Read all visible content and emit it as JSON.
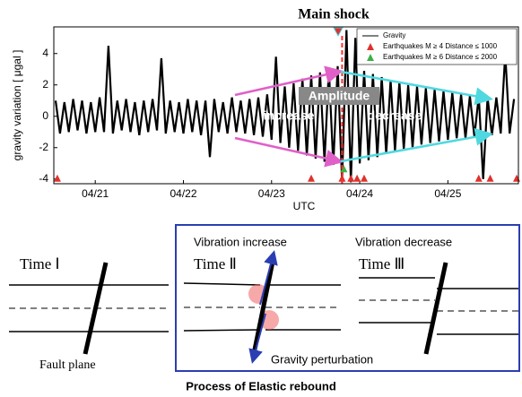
{
  "chart_data": {
    "type": "line",
    "title": "Main shock",
    "xlabel": "UTC",
    "ylabel": "gravity variation [ μgal ]",
    "annotations": {
      "amplitude": "Amplitude",
      "increase": "increase",
      "decrease": "decrease"
    },
    "xlim": [
      20.53,
      25.8
    ],
    "ylim": [
      -4.3,
      5.7
    ],
    "xticks": [
      {
        "value": 21,
        "label": "04/21"
      },
      {
        "value": 22,
        "label": "04/22"
      },
      {
        "value": 23,
        "label": "04/23"
      },
      {
        "value": 24,
        "label": "04/24"
      },
      {
        "value": 25,
        "label": "04/25"
      }
    ],
    "yticks": [
      -4,
      -2,
      0,
      2,
      4
    ],
    "main_shock_x": 23.8,
    "series": [
      {
        "name": "Gravity",
        "color": "#000000",
        "kind": "line",
        "x": [
          20.55,
          20.6,
          20.65,
          20.7,
          20.75,
          20.8,
          20.85,
          20.9,
          20.95,
          21.0,
          21.05,
          21.1,
          21.15,
          21.2,
          21.25,
          21.3,
          21.35,
          21.4,
          21.45,
          21.5,
          21.55,
          21.6,
          21.65,
          21.7,
          21.75,
          21.8,
          21.85,
          21.9,
          21.95,
          22.0,
          22.05,
          22.1,
          22.15,
          22.2,
          22.25,
          22.3,
          22.35,
          22.4,
          22.45,
          22.5,
          22.55,
          22.6,
          22.65,
          22.7,
          22.75,
          22.8,
          22.85,
          22.9,
          22.95,
          23.0,
          23.05,
          23.1,
          23.15,
          23.2,
          23.25,
          23.3,
          23.35,
          23.4,
          23.45,
          23.5,
          23.55,
          23.6,
          23.65,
          23.7,
          23.75,
          23.8,
          23.85,
          23.9,
          23.95,
          24.0,
          24.05,
          24.1,
          24.15,
          24.2,
          24.25,
          24.3,
          24.35,
          24.4,
          24.45,
          24.5,
          24.55,
          24.6,
          24.65,
          24.7,
          24.75,
          24.8,
          24.85,
          24.9,
          24.95,
          25.0,
          25.05,
          25.1,
          25.15,
          25.2,
          25.25,
          25.3,
          25.35,
          25.4,
          25.45,
          25.5,
          25.55,
          25.6,
          25.65,
          25.7,
          25.75
        ],
        "values": [
          1.0,
          -1.1,
          0.9,
          -1.0,
          1.1,
          -0.9,
          1.0,
          -1.1,
          0.9,
          -1.0,
          1.2,
          -1.0,
          4.5,
          -1.1,
          1.0,
          -0.9,
          1.1,
          -1.0,
          0.9,
          -1.2,
          1.0,
          -1.0,
          1.1,
          -0.9,
          3.7,
          -1.1,
          1.0,
          -1.0,
          0.9,
          -1.1,
          1.1,
          -1.0,
          1.0,
          -1.2,
          1.0,
          -2.6,
          1.1,
          -1.0,
          0.9,
          -1.1,
          1.2,
          -1.0,
          1.0,
          -1.1,
          1.1,
          -1.2,
          1.2,
          -1.3,
          1.4,
          -1.5,
          3.8,
          -1.7,
          1.9,
          -2.0,
          2.1,
          -2.2,
          2.4,
          -2.5,
          2.6,
          -2.7,
          2.8,
          -2.9,
          3.0,
          -3.1,
          3.2,
          -4.2,
          5.5,
          -4.2,
          5.0,
          -3.0,
          2.9,
          -2.8,
          2.7,
          -2.6,
          2.5,
          -2.4,
          2.3,
          -2.2,
          2.2,
          -2.1,
          2.0,
          -2.0,
          1.9,
          -1.8,
          1.8,
          -1.7,
          1.7,
          -1.6,
          1.6,
          -1.5,
          1.5,
          -1.4,
          1.4,
          -1.4,
          1.3,
          -1.3,
          1.3,
          -4.0,
          1.2,
          -1.2,
          1.2,
          -1.1,
          4.0,
          -1.1,
          1.1
        ]
      },
      {
        "name": "Earthquakes M ≥ 4 Distance ≤ 1000",
        "color": "#e0302a",
        "kind": "triangle",
        "x": [
          20.57,
          23.45,
          23.8,
          23.9,
          23.97,
          24.05,
          25.35,
          25.48,
          25.78
        ],
        "values": [
          -4,
          -4,
          -4,
          -4,
          -4,
          -4,
          -4,
          -4,
          -4
        ]
      },
      {
        "name": "Earthquakes M ≥ 6 Distance ≤ 2000",
        "color": "#3cb043",
        "kind": "triangle",
        "x": [
          23.82
        ],
        "values": [
          -3.4
        ]
      }
    ]
  },
  "diagram": {
    "caption": "Process of Elastic rebound",
    "time1": "Time Ⅰ",
    "time2": "Time Ⅱ",
    "time3": "Time Ⅲ",
    "vibration_increase": "Vibration increase",
    "vibration_decrease": "Vibration decrease",
    "fault_plane": "Fault plane",
    "gravity_perturbation": "Gravity perturbation"
  }
}
